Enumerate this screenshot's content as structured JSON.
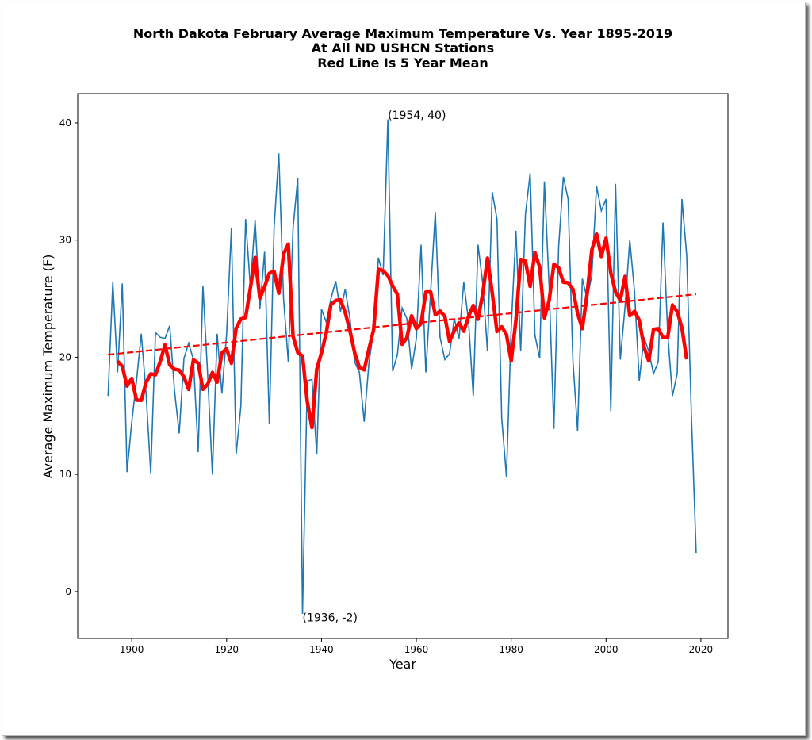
{
  "chart_data": {
    "type": "line",
    "title": [
      "North Dakota February Average Maximum Temperature Vs. Year 1895-2019",
      "At All ND USHCN Stations",
      "Red Line Is 5 Year Mean"
    ],
    "xlabel": "Year",
    "ylabel": "Average Maximum Temperature (F)",
    "xlim": [
      1888.6,
      2025.7
    ],
    "ylim": [
      -4,
      42.5
    ],
    "xticks": [
      1900,
      1920,
      1940,
      1960,
      1980,
      2000,
      2020
    ],
    "yticks": [
      0,
      10,
      20,
      30,
      40
    ],
    "grid": false,
    "x_start": 1895,
    "values": [
      16.7,
      26.4,
      18.7,
      26.3,
      10.2,
      14.5,
      18,
      22,
      17,
      10.1,
      22.1,
      21.7,
      21.6,
      22.7,
      17.2,
      13.5,
      19.9,
      21.2,
      19.8,
      11.9,
      26.1,
      18.5,
      10,
      22,
      16.9,
      22,
      31,
      11.7,
      15.8,
      31.8,
      26,
      31.7,
      24.1,
      29,
      14.3,
      31,
      37.4,
      25,
      19.6,
      31,
      35.3,
      -1.9,
      18,
      18.1,
      11.7,
      24.1,
      23,
      25,
      26.5,
      23.9,
      25.8,
      23.3,
      19.6,
      18.7,
      14.5,
      19.5,
      22.3,
      28.5,
      27,
      40.3,
      18.8,
      20.2,
      24.2,
      23.3,
      19,
      21.6,
      29.6,
      18.7,
      25.5,
      32.4,
      21.7,
      19.8,
      20.3,
      23.3,
      21.6,
      26.4,
      23.1,
      16.7,
      29.6,
      26.3,
      20.5,
      34.1,
      31.8,
      14.8,
      9.8,
      22.5,
      30.8,
      20.5,
      32.2,
      35.7,
      21.9,
      19.9,
      35,
      26,
      13.9,
      29.4,
      35.4,
      33.5,
      19.8,
      13.7,
      26.7,
      25,
      27,
      34.6,
      32.5,
      33.5,
      15.4,
      34.8,
      19.8,
      24.3,
      30,
      25.6,
      18,
      21.7,
      20.5,
      18.6,
      19.6,
      31.5,
      22,
      16.7,
      18.6,
      33.5,
      28.7,
      15,
      3.3
    ],
    "series_styles": {
      "annual": {
        "color": "#1f77b4"
      },
      "five_year_mean": {
        "color": "#ff0000",
        "window": 5
      },
      "trend": {
        "color": "#ff0000",
        "style": "dashed",
        "fit": "linear"
      }
    },
    "annotations": [
      {
        "x": 1954,
        "y": 40,
        "text": "(1954, 40)"
      },
      {
        "x": 1936,
        "y": -2,
        "text": "(1936, -2)"
      }
    ]
  }
}
